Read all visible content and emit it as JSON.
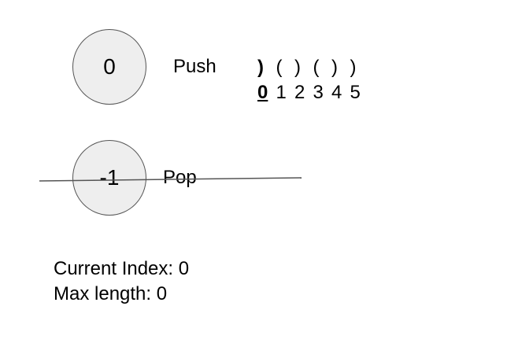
{
  "stack": {
    "top_value": "0",
    "popped_value": "-1"
  },
  "actions": {
    "push_label": "Push",
    "pop_label": "Pop"
  },
  "sequence": {
    "characters": [
      ")",
      "(",
      ")",
      "(",
      ")",
      ")"
    ],
    "indices": [
      "0",
      "1",
      "2",
      "3",
      "4",
      "5"
    ],
    "highlighted_index": 0
  },
  "status": {
    "current_index_label": "Current Index: 0",
    "max_length_label": "Max length: 0"
  },
  "colors": {
    "circle_fill": "#eeeeee",
    "circle_stroke": "#555555",
    "strike_line": "#555555"
  }
}
